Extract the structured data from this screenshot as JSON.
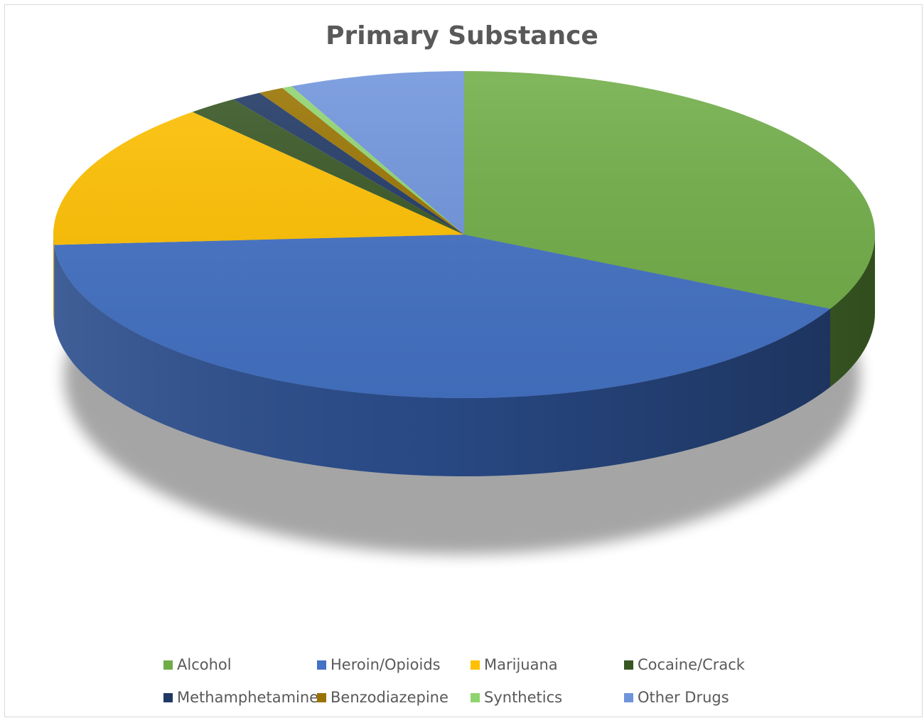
{
  "chart_data": {
    "type": "pie",
    "title": "Primary Substance",
    "legend_position": "bottom",
    "categories": [
      "Alcohol",
      "Heroin/Opioids",
      "Marijuana",
      "Cocaine/Crack",
      "Methamphetamine",
      "Benzodiazepine",
      "Synthetics",
      "Other Drugs"
    ],
    "values": [
      32.5,
      41.5,
      14.5,
      2.0,
      1.2,
      1.0,
      0.4,
      6.9
    ],
    "unit": "percent (estimated)",
    "colors": [
      "#70ad47",
      "#4472c4",
      "#ffc000",
      "#375623",
      "#203864",
      "#997300",
      "#8fd46f",
      "#6f94dc"
    ],
    "side_colors": [
      "#2f4a1c",
      "#17305f",
      "#8a6700",
      "#1b2a10",
      "#0f1c36",
      "#4d3a00",
      "#4a7a36",
      "#3a5795"
    ]
  }
}
